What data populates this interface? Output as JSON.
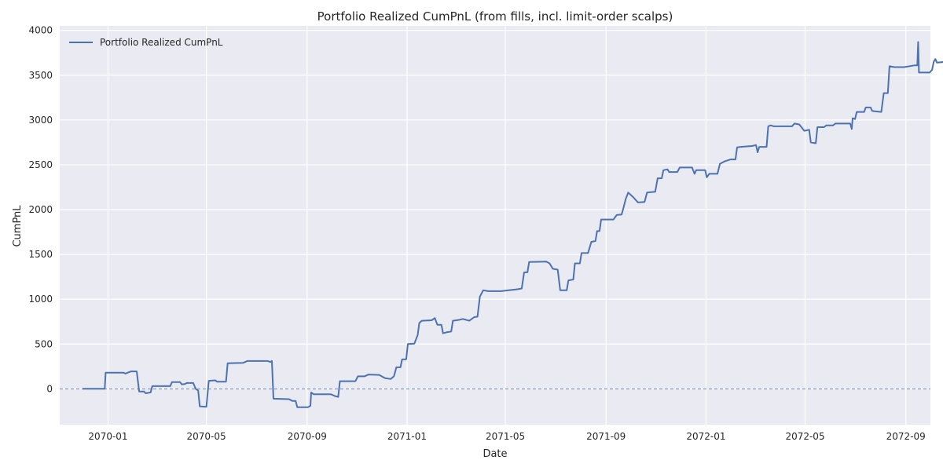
{
  "chart_data": {
    "type": "line",
    "title": "Portfolio Realized CumPnL (from fills, incl. limit-order scalps)",
    "xlabel": "Date",
    "ylabel": "CumPnL",
    "xlim": [
      "2069-11-03",
      "2072-10-01"
    ],
    "ylim": [
      -400,
      4050
    ],
    "x_ticks": [
      "2070-01",
      "2070-05",
      "2070-09",
      "2071-01",
      "2071-05",
      "2071-09",
      "2072-01",
      "2072-05",
      "2072-09"
    ],
    "y_ticks": [
      0,
      500,
      1000,
      1500,
      2000,
      2500,
      3000,
      3500,
      4000
    ],
    "grid": true,
    "legend_position": "top-left",
    "reference_line": {
      "y": 0,
      "style": "dashed"
    },
    "colors": {
      "series": "#4c72b0",
      "background": "#eaeaf2",
      "grid": "#ffffff",
      "reference": "#4c72b0"
    },
    "series": [
      {
        "name": "Portfolio Realized CumPnL",
        "points": [
          [
            "2069-12-01",
            0
          ],
          [
            "2069-12-28",
            0
          ],
          [
            "2069-12-29",
            180
          ],
          [
            "2070-01-20",
            180
          ],
          [
            "2070-01-22",
            170
          ],
          [
            "2070-01-29",
            195
          ],
          [
            "2070-02-05",
            195
          ],
          [
            "2070-02-08",
            -30
          ],
          [
            "2070-02-14",
            -30
          ],
          [
            "2070-02-16",
            -50
          ],
          [
            "2070-02-22",
            -40
          ],
          [
            "2070-02-24",
            30
          ],
          [
            "2070-03-18",
            30
          ],
          [
            "2070-03-20",
            75
          ],
          [
            "2070-03-30",
            75
          ],
          [
            "2070-04-01",
            50
          ],
          [
            "2070-04-05",
            55
          ],
          [
            "2070-04-07",
            65
          ],
          [
            "2070-04-15",
            65
          ],
          [
            "2070-04-18",
            0
          ],
          [
            "2070-04-21",
            -20
          ],
          [
            "2070-04-23",
            -195
          ],
          [
            "2070-05-01",
            -200
          ],
          [
            "2070-05-04",
            90
          ],
          [
            "2070-05-12",
            95
          ],
          [
            "2070-05-14",
            80
          ],
          [
            "2070-05-25",
            80
          ],
          [
            "2070-05-27",
            285
          ],
          [
            "2070-06-15",
            290
          ],
          [
            "2070-06-20",
            310
          ],
          [
            "2070-07-15",
            310
          ],
          [
            "2070-07-18",
            300
          ],
          [
            "2070-07-20",
            310
          ],
          [
            "2070-07-22",
            -110
          ],
          [
            "2070-08-10",
            -115
          ],
          [
            "2070-08-14",
            -135
          ],
          [
            "2070-08-18",
            -135
          ],
          [
            "2070-08-20",
            -205
          ],
          [
            "2070-09-02",
            -205
          ],
          [
            "2070-09-05",
            -190
          ],
          [
            "2070-09-06",
            -40
          ],
          [
            "2070-09-09",
            -60
          ],
          [
            "2070-09-30",
            -60
          ],
          [
            "2070-10-05",
            -80
          ],
          [
            "2070-10-09",
            -90
          ],
          [
            "2070-10-11",
            85
          ],
          [
            "2070-10-30",
            85
          ],
          [
            "2070-11-02",
            140
          ],
          [
            "2070-11-10",
            140
          ],
          [
            "2070-11-15",
            160
          ],
          [
            "2070-11-28",
            155
          ],
          [
            "2070-12-05",
            120
          ],
          [
            "2070-12-12",
            110
          ],
          [
            "2070-12-16",
            140
          ],
          [
            "2070-12-19",
            240
          ],
          [
            "2070-12-24",
            240
          ],
          [
            "2070-12-26",
            330
          ],
          [
            "2070-12-31",
            330
          ],
          [
            "2071-01-02",
            500
          ],
          [
            "2071-01-10",
            505
          ],
          [
            "2071-01-14",
            600
          ],
          [
            "2071-01-16",
            735
          ],
          [
            "2071-01-19",
            760
          ],
          [
            "2071-01-31",
            765
          ],
          [
            "2071-02-04",
            790
          ],
          [
            "2071-02-07",
            715
          ],
          [
            "2071-02-12",
            715
          ],
          [
            "2071-02-14",
            620
          ],
          [
            "2071-02-18",
            630
          ],
          [
            "2071-02-24",
            640
          ],
          [
            "2071-02-26",
            760
          ],
          [
            "2071-03-06",
            770
          ],
          [
            "2071-03-10",
            780
          ],
          [
            "2071-03-14",
            770
          ],
          [
            "2071-03-18",
            760
          ],
          [
            "2071-03-24",
            800
          ],
          [
            "2071-03-28",
            805
          ],
          [
            "2071-03-31",
            1030
          ],
          [
            "2071-04-04",
            1100
          ],
          [
            "2071-04-10",
            1090
          ],
          [
            "2071-04-26",
            1090
          ],
          [
            "2071-05-05",
            1100
          ],
          [
            "2071-05-15",
            1110
          ],
          [
            "2071-05-21",
            1120
          ],
          [
            "2071-05-24",
            1300
          ],
          [
            "2071-05-28",
            1300
          ],
          [
            "2071-05-30",
            1415
          ],
          [
            "2071-06-20",
            1420
          ],
          [
            "2071-06-24",
            1400
          ],
          [
            "2071-06-28",
            1340
          ],
          [
            "2071-07-04",
            1330
          ],
          [
            "2071-07-07",
            1100
          ],
          [
            "2071-07-15",
            1100
          ],
          [
            "2071-07-17",
            1210
          ],
          [
            "2071-07-23",
            1220
          ],
          [
            "2071-07-25",
            1400
          ],
          [
            "2071-07-31",
            1400
          ],
          [
            "2071-08-02",
            1515
          ],
          [
            "2071-08-10",
            1515
          ],
          [
            "2071-08-14",
            1640
          ],
          [
            "2071-08-19",
            1650
          ],
          [
            "2071-08-21",
            1760
          ],
          [
            "2071-08-24",
            1760
          ],
          [
            "2071-08-26",
            1890
          ],
          [
            "2071-09-10",
            1890
          ],
          [
            "2071-09-14",
            1940
          ],
          [
            "2071-09-20",
            1945
          ],
          [
            "2071-09-22",
            2010
          ],
          [
            "2071-09-25",
            2120
          ],
          [
            "2071-09-28",
            2190
          ],
          [
            "2071-10-04",
            2140
          ],
          [
            "2071-10-10",
            2080
          ],
          [
            "2071-10-18",
            2085
          ],
          [
            "2071-10-21",
            2190
          ],
          [
            "2071-10-31",
            2200
          ],
          [
            "2071-11-03",
            2350
          ],
          [
            "2071-11-08",
            2350
          ],
          [
            "2071-11-10",
            2440
          ],
          [
            "2071-11-15",
            2450
          ],
          [
            "2071-11-17",
            2420
          ],
          [
            "2071-11-27",
            2420
          ],
          [
            "2071-11-30",
            2470
          ],
          [
            "2071-12-15",
            2470
          ],
          [
            "2071-12-18",
            2400
          ],
          [
            "2071-12-20",
            2440
          ],
          [
            "2071-12-31",
            2440
          ],
          [
            "2072-01-02",
            2360
          ],
          [
            "2072-01-05",
            2400
          ],
          [
            "2072-01-15",
            2400
          ],
          [
            "2072-01-18",
            2510
          ],
          [
            "2072-01-24",
            2540
          ],
          [
            "2072-01-31",
            2560
          ],
          [
            "2072-02-06",
            2560
          ],
          [
            "2072-02-08",
            2695
          ],
          [
            "2072-02-12",
            2700
          ],
          [
            "2072-02-26",
            2710
          ],
          [
            "2072-03-02",
            2720
          ],
          [
            "2072-03-04",
            2640
          ],
          [
            "2072-03-06",
            2700
          ],
          [
            "2072-03-15",
            2700
          ],
          [
            "2072-03-17",
            2930
          ],
          [
            "2072-03-20",
            2940
          ],
          [
            "2072-03-24",
            2930
          ],
          [
            "2072-04-15",
            2930
          ],
          [
            "2072-04-18",
            2960
          ],
          [
            "2072-04-24",
            2950
          ],
          [
            "2072-04-30",
            2880
          ],
          [
            "2072-05-06",
            2890
          ],
          [
            "2072-05-08",
            2750
          ],
          [
            "2072-05-14",
            2740
          ],
          [
            "2072-05-16",
            2920
          ],
          [
            "2072-05-24",
            2920
          ],
          [
            "2072-05-27",
            2940
          ],
          [
            "2072-06-04",
            2940
          ],
          [
            "2072-06-07",
            2960
          ],
          [
            "2072-06-25",
            2960
          ],
          [
            "2072-06-27",
            2900
          ],
          [
            "2072-06-28",
            3020
          ],
          [
            "2072-07-01",
            3010
          ],
          [
            "2072-07-03",
            3090
          ],
          [
            "2072-07-12",
            3090
          ],
          [
            "2072-07-14",
            3140
          ],
          [
            "2072-07-20",
            3140
          ],
          [
            "2072-07-22",
            3100
          ],
          [
            "2072-08-02",
            3090
          ],
          [
            "2072-08-05",
            3300
          ],
          [
            "2072-08-10",
            3300
          ],
          [
            "2072-08-12",
            3600
          ],
          [
            "2072-08-18",
            3590
          ],
          [
            "2072-08-30",
            3590
          ],
          [
            "2072-09-12",
            3610
          ],
          [
            "2072-09-15",
            3610
          ],
          [
            "2072-09-16",
            3870
          ],
          [
            "2072-09-17",
            3530
          ],
          [
            "2072-09-30",
            3530
          ],
          [
            "2072-10-03",
            3560
          ],
          [
            "2072-10-05",
            3650
          ],
          [
            "2072-10-07",
            3680
          ],
          [
            "2072-10-09",
            3640
          ],
          [
            "2072-10-20",
            3650
          ],
          [
            "2072-10-28",
            3645
          ]
        ]
      }
    ]
  }
}
